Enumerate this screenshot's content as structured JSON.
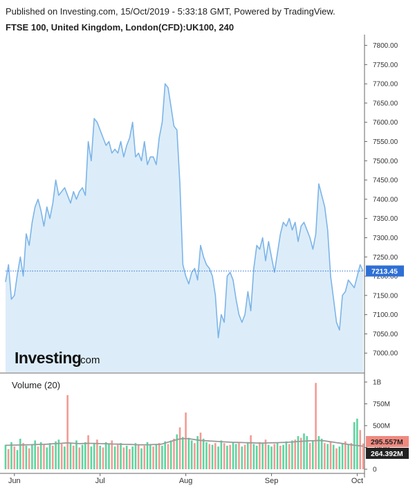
{
  "header": {
    "published": "Published on Investing.com, 15/Oct/2019 - 5:33:18 GMT, Powered by TradingView.",
    "instrument": "FTSE 100, United Kingdom, London(CFD):UK100, 240"
  },
  "logo": {
    "main": "Investing",
    "sub": ".com"
  },
  "colors": {
    "line": "#7cb4e8",
    "fill": "#dcedf9",
    "up": "#3fcf8e",
    "down": "#f08a80",
    "ma": "#9a9a9a",
    "last_price": "#2e6fd6",
    "vol_badge_red": "#f08a80",
    "vol_badge_black": "#222222"
  },
  "chart_data": [
    {
      "type": "area",
      "title": "FTSE 100, United Kingdom, London(CFD):UK100, 240",
      "ylim": [
        6950,
        7810
      ],
      "y_ticks": [
        7000,
        7050,
        7100,
        7150,
        7200,
        7250,
        7300,
        7350,
        7400,
        7450,
        7500,
        7550,
        7600,
        7650,
        7700,
        7750,
        7800
      ],
      "y_tick_labels": [
        "7000.00",
        "7050.00",
        "7100.00",
        "7150.00",
        "7200.00",
        "7250.00",
        "7300.00",
        "7350.00",
        "7400.00",
        "7450.00",
        "7500.00",
        "7550.00",
        "7600.00",
        "7650.00",
        "7700.00",
        "7750.00",
        "7800.00"
      ],
      "x_labels": [
        "Jun",
        "Jul",
        "Aug",
        "Sep",
        "Oct"
      ],
      "x_label_index": [
        3,
        32,
        61,
        90,
        119
      ],
      "last_price": 7213.45,
      "last_price_label": "7213.45",
      "grid": false,
      "values": [
        7185,
        7230,
        7140,
        7150,
        7205,
        7250,
        7200,
        7310,
        7280,
        7340,
        7380,
        7400,
        7370,
        7330,
        7380,
        7350,
        7390,
        7450,
        7410,
        7420,
        7430,
        7410,
        7390,
        7420,
        7400,
        7420,
        7430,
        7410,
        7550,
        7500,
        7610,
        7600,
        7580,
        7560,
        7540,
        7550,
        7520,
        7530,
        7520,
        7550,
        7510,
        7540,
        7560,
        7600,
        7510,
        7520,
        7500,
        7550,
        7490,
        7510,
        7510,
        7490,
        7560,
        7600,
        7700,
        7690,
        7640,
        7590,
        7580,
        7440,
        7230,
        7200,
        7180,
        7210,
        7220,
        7190,
        7280,
        7250,
        7230,
        7220,
        7200,
        7150,
        7040,
        7100,
        7080,
        7200,
        7210,
        7190,
        7140,
        7100,
        7080,
        7100,
        7160,
        7110,
        7220,
        7280,
        7270,
        7300,
        7240,
        7290,
        7250,
        7210,
        7260,
        7310,
        7340,
        7330,
        7350,
        7320,
        7340,
        7290,
        7330,
        7340,
        7320,
        7300,
        7270,
        7310,
        7440,
        7410,
        7380,
        7320,
        7200,
        7140,
        7080,
        7060,
        7150,
        7160,
        7190,
        7180,
        7170,
        7200,
        7230,
        7213
      ],
      "volume": {
        "title": "Volume (20)",
        "ylim": [
          0,
          1000000000
        ],
        "y_ticks": [
          0,
          250000000,
          500000000,
          750000000,
          1000000000
        ],
        "y_tick_labels": [
          "0",
          "250M",
          "500M",
          "750M",
          "1B"
        ],
        "last_volume_label": "295.557M",
        "ma_label": "264.392M",
        "values": [
          280,
          230,
          310,
          260,
          220,
          350,
          300,
          270,
          240,
          290,
          330,
          260,
          310,
          280,
          250,
          300,
          270,
          320,
          340,
          290,
          260,
          850,
          300,
          270,
          330,
          250,
          280,
          310,
          390,
          260,
          300,
          340,
          270,
          250,
          310,
          290,
          330,
          260,
          280,
          300,
          250,
          270,
          230,
          260,
          300,
          280,
          240,
          270,
          310,
          290,
          260,
          280,
          300,
          270,
          320,
          290,
          330,
          350,
          400,
          480,
          370,
          650,
          360,
          330,
          300,
          380,
          420,
          350,
          310,
          290,
          280,
          300,
          260,
          330,
          300,
          270,
          280,
          310,
          290,
          300,
          260,
          280,
          310,
          390,
          290,
          270,
          310,
          300,
          340,
          280,
          260,
          290,
          300,
          270,
          280,
          320,
          290,
          330,
          340,
          380,
          360,
          410,
          380,
          300,
          330,
          990,
          380,
          350,
          300,
          290,
          310,
          280,
          240,
          260,
          300,
          320,
          280,
          300,
          540,
          580,
          450,
          295
        ],
        "up": [
          1,
          0,
          1,
          0,
          1,
          1,
          0,
          1,
          0,
          1,
          1,
          0,
          1,
          0,
          1,
          1,
          0,
          1,
          1,
          0,
          1,
          0,
          1,
          0,
          1,
          0,
          1,
          1,
          0,
          1,
          1,
          0,
          1,
          0,
          1,
          1,
          0,
          1,
          0,
          1,
          0,
          1,
          0,
          1,
          1,
          0,
          1,
          0,
          1,
          1,
          0,
          1,
          0,
          1,
          1,
          0,
          1,
          0,
          1,
          0,
          1,
          0,
          1,
          1,
          0,
          1,
          0,
          1,
          1,
          0,
          1,
          0,
          1,
          1,
          0,
          1,
          0,
          1,
          1,
          0,
          1,
          0,
          1,
          0,
          1,
          1,
          0,
          1,
          0,
          1,
          1,
          0,
          1,
          0,
          1,
          1,
          0,
          1,
          0,
          1,
          0,
          1,
          1,
          0,
          1,
          0,
          1,
          1,
          0,
          1,
          0,
          1,
          0,
          1,
          1,
          0,
          1,
          0,
          1,
          1,
          0,
          0
        ],
        "ma": [
          275,
          275,
          276,
          277,
          278,
          278,
          279,
          280,
          281,
          282,
          283,
          284,
          285,
          286,
          287,
          290,
          292,
          294,
          296,
          298,
          300,
          302,
          300,
          298,
          296,
          294,
          295,
          296,
          298,
          297,
          296,
          295,
          294,
          293,
          292,
          291,
          290,
          289,
          288,
          287,
          286,
          285,
          284,
          283,
          282,
          281,
          280,
          280,
          281,
          282,
          283,
          284,
          285,
          290,
          300,
          310,
          320,
          330,
          340,
          348,
          350,
          352,
          350,
          345,
          340,
          335,
          330,
          328,
          326,
          324,
          322,
          320,
          318,
          316,
          314,
          312,
          310,
          309,
          308,
          307,
          306,
          305,
          304,
          303,
          302,
          301,
          300,
          300,
          301,
          302,
          303,
          304,
          305,
          306,
          307,
          308,
          310,
          312,
          315,
          318,
          320,
          322,
          324,
          326,
          327,
          328,
          330,
          328,
          325,
          320,
          315,
          310,
          305,
          300,
          295,
          290,
          285,
          280,
          275,
          272,
          268,
          264
        ]
      }
    }
  ]
}
